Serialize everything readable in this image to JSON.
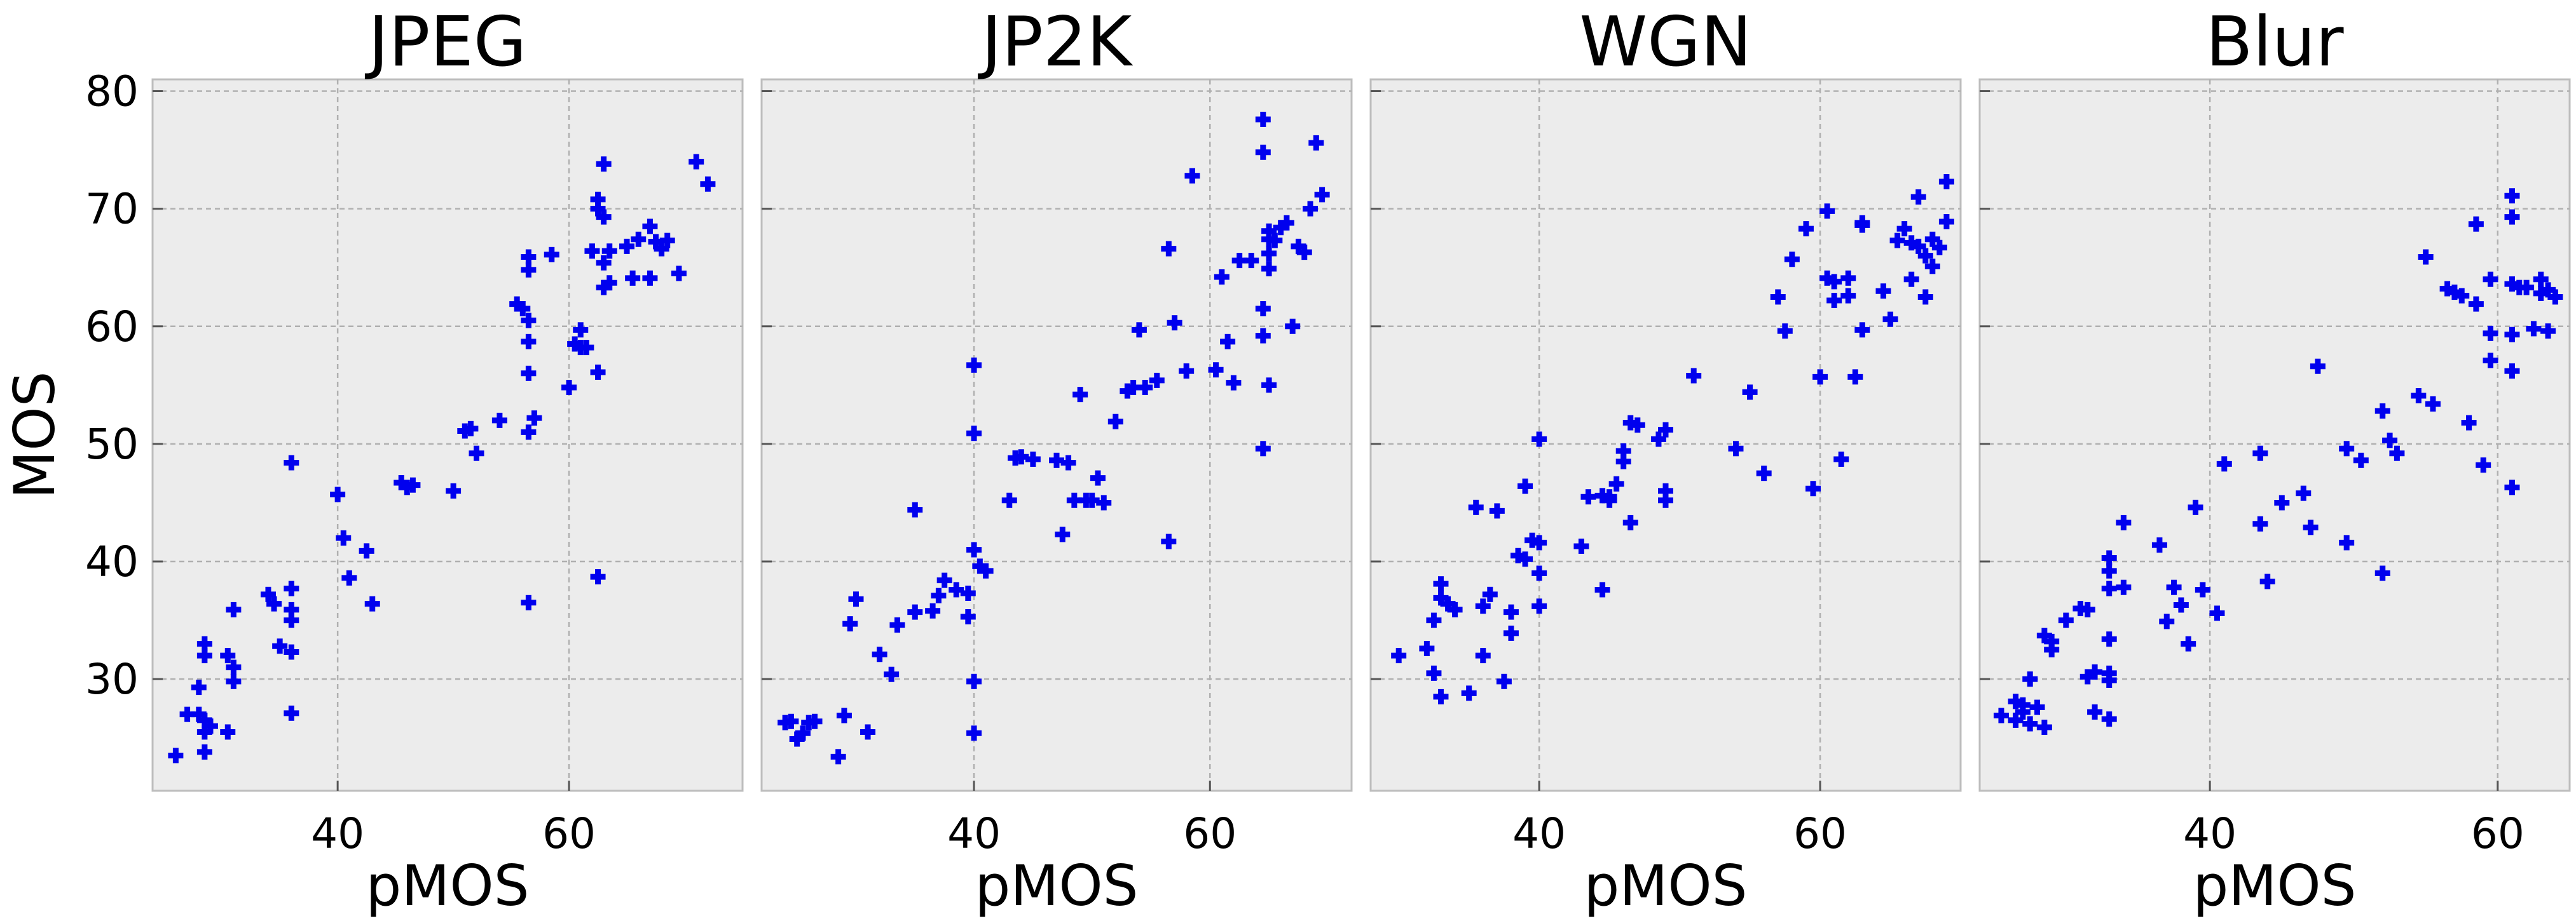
{
  "chart_data": [
    {
      "type": "scatter",
      "title": "JPEG",
      "xlabel": "pMOS",
      "ylabel": "MOS",
      "xlim": [
        24,
        75
      ],
      "ylim": [
        20.5,
        81
      ],
      "xticks": [
        40,
        60
      ],
      "yticks": [
        30,
        40,
        50,
        60,
        70,
        80
      ],
      "grid": true,
      "marker": "plus",
      "color": "#0000ee",
      "points": [
        [
          26,
          23.5
        ],
        [
          27,
          27
        ],
        [
          28,
          29.3
        ],
        [
          28,
          27
        ],
        [
          28.5,
          26.5
        ],
        [
          28.5,
          25.5
        ],
        [
          28.5,
          23.8
        ],
        [
          28.5,
          32
        ],
        [
          28.5,
          33
        ],
        [
          29,
          26
        ],
        [
          30.5,
          32
        ],
        [
          30.5,
          25.5
        ],
        [
          31,
          29.8
        ],
        [
          31,
          35.9
        ],
        [
          31,
          31
        ],
        [
          34,
          37.2
        ],
        [
          34.5,
          36.4
        ],
        [
          35,
          32.8
        ],
        [
          36,
          48.4
        ],
        [
          36,
          37.7
        ],
        [
          36,
          35.9
        ],
        [
          36,
          35
        ],
        [
          36,
          32.3
        ],
        [
          36,
          27.1
        ],
        [
          40,
          45.7
        ],
        [
          40.5,
          42
        ],
        [
          41,
          38.6
        ],
        [
          42.5,
          40.9
        ],
        [
          43,
          36.4
        ],
        [
          45.5,
          46.7
        ],
        [
          46,
          46.3
        ],
        [
          46.5,
          46.5
        ],
        [
          50,
          46
        ],
        [
          51,
          51.1
        ],
        [
          51.5,
          51.3
        ],
        [
          52,
          49.2
        ],
        [
          54,
          52
        ],
        [
          55.5,
          61.9
        ],
        [
          56,
          61.5
        ],
        [
          56.5,
          65.9
        ],
        [
          56.5,
          64.8
        ],
        [
          56.5,
          60.5
        ],
        [
          56.5,
          58.7
        ],
        [
          56.5,
          56
        ],
        [
          56.5,
          51
        ],
        [
          56.5,
          36.5
        ],
        [
          57,
          52.2
        ],
        [
          58.5,
          66.1
        ],
        [
          60,
          54.8
        ],
        [
          60.5,
          58.5
        ],
        [
          61,
          59.7
        ],
        [
          61,
          58.2
        ],
        [
          61.5,
          58.2
        ],
        [
          62,
          66.4
        ],
        [
          62.5,
          70.8
        ],
        [
          62.5,
          70
        ],
        [
          62.5,
          56.1
        ],
        [
          62.5,
          38.7
        ],
        [
          63,
          73.8
        ],
        [
          63,
          69.3
        ],
        [
          63,
          65.4
        ],
        [
          63,
          63.3
        ],
        [
          63.5,
          66.4
        ],
        [
          63.5,
          63.7
        ],
        [
          65,
          66.8
        ],
        [
          65.5,
          64.1
        ],
        [
          66,
          67.4
        ],
        [
          67,
          68.5
        ],
        [
          67,
          64.1
        ],
        [
          67.5,
          67.2
        ],
        [
          68,
          66.6
        ],
        [
          68.5,
          67.3
        ],
        [
          69.5,
          64.5
        ],
        [
          71,
          74
        ],
        [
          72,
          72.1
        ]
      ]
    },
    {
      "type": "scatter",
      "title": "JP2K",
      "xlabel": "pMOS",
      "xlim": [
        22,
        72
      ],
      "ylim": [
        20.5,
        81
      ],
      "xticks": [
        40,
        60
      ],
      "yticks": [
        30,
        40,
        50,
        60,
        70,
        80
      ],
      "grid": true,
      "marker": "plus",
      "color": "#0000ee",
      "points": [
        [
          24,
          26.3
        ],
        [
          24.5,
          26.4
        ],
        [
          25,
          24.9
        ],
        [
          25.5,
          25.4
        ],
        [
          26,
          26.3
        ],
        [
          26.5,
          26.4
        ],
        [
          28.5,
          23.4
        ],
        [
          29,
          26.9
        ],
        [
          29.5,
          34.7
        ],
        [
          30,
          36.8
        ],
        [
          31,
          25.5
        ],
        [
          32,
          32.1
        ],
        [
          33,
          30.4
        ],
        [
          33.5,
          34.6
        ],
        [
          35,
          35.7
        ],
        [
          35,
          44.4
        ],
        [
          36.5,
          35.8
        ],
        [
          37,
          37.1
        ],
        [
          37.5,
          38.4
        ],
        [
          38.5,
          37.6
        ],
        [
          39.5,
          35.3
        ],
        [
          39.5,
          37.3
        ],
        [
          40,
          56.7
        ],
        [
          40,
          50.9
        ],
        [
          40,
          41
        ],
        [
          40,
          29.8
        ],
        [
          40,
          25.4
        ],
        [
          40.5,
          39.6
        ],
        [
          41,
          39.2
        ],
        [
          43,
          45.2
        ],
        [
          43.5,
          48.8
        ],
        [
          44,
          48.9
        ],
        [
          45,
          48.7
        ],
        [
          47,
          48.6
        ],
        [
          47.5,
          42.3
        ],
        [
          48,
          48.4
        ],
        [
          48.5,
          45.2
        ],
        [
          49,
          54.2
        ],
        [
          49.5,
          45.2
        ],
        [
          50,
          45.2
        ],
        [
          50.5,
          47.1
        ],
        [
          51,
          45
        ],
        [
          52,
          51.9
        ],
        [
          53,
          54.5
        ],
        [
          53.5,
          54.8
        ],
        [
          54,
          59.7
        ],
        [
          54.5,
          54.8
        ],
        [
          55.5,
          55.4
        ],
        [
          56.5,
          66.6
        ],
        [
          56.5,
          41.7
        ],
        [
          57,
          60.3
        ],
        [
          58,
          56.2
        ],
        [
          58.5,
          72.8
        ],
        [
          60.5,
          56.3
        ],
        [
          61,
          64.2
        ],
        [
          61.5,
          58.7
        ],
        [
          62,
          55.2
        ],
        [
          62.5,
          65.6
        ],
        [
          63.5,
          65.6
        ],
        [
          64.5,
          77.6
        ],
        [
          64.5,
          74.8
        ],
        [
          64.5,
          61.5
        ],
        [
          64.5,
          59.2
        ],
        [
          64.5,
          49.6
        ],
        [
          65,
          68.1
        ],
        [
          65,
          67.4
        ],
        [
          65,
          66.2
        ],
        [
          65,
          64.9
        ],
        [
          65,
          55
        ],
        [
          65.5,
          67.3
        ],
        [
          66,
          68.4
        ],
        [
          66.5,
          68.8
        ],
        [
          67,
          60
        ],
        [
          67.5,
          66.8
        ],
        [
          68,
          66.3
        ],
        [
          68.5,
          70
        ],
        [
          69,
          75.6
        ],
        [
          69.5,
          71.2
        ]
      ]
    },
    {
      "type": "scatter",
      "title": "WGN",
      "xlabel": "pMOS",
      "xlim": [
        28,
        70
      ],
      "ylim": [
        20.5,
        81
      ],
      "xticks": [
        40,
        60
      ],
      "yticks": [
        30,
        40,
        50,
        60,
        70,
        80
      ],
      "grid": true,
      "marker": "plus",
      "color": "#0000ee",
      "points": [
        [
          30,
          32
        ],
        [
          32,
          32.6
        ],
        [
          32.5,
          30.5
        ],
        [
          32.5,
          35
        ],
        [
          33,
          36.9
        ],
        [
          33,
          38.1
        ],
        [
          33,
          28.5
        ],
        [
          33.5,
          36.4
        ],
        [
          34,
          35.9
        ],
        [
          35,
          28.8
        ],
        [
          35.5,
          44.6
        ],
        [
          36,
          36.2
        ],
        [
          36,
          32
        ],
        [
          36.5,
          37.2
        ],
        [
          37,
          44.3
        ],
        [
          37.5,
          29.8
        ],
        [
          38,
          33.9
        ],
        [
          38,
          35.7
        ],
        [
          38.5,
          40.5
        ],
        [
          39,
          40.2
        ],
        [
          39,
          46.4
        ],
        [
          39.5,
          41.8
        ],
        [
          40,
          39
        ],
        [
          40,
          36.2
        ],
        [
          40,
          41.6
        ],
        [
          40,
          50.4
        ],
        [
          43,
          41.3
        ],
        [
          43.5,
          45.5
        ],
        [
          44.5,
          45.6
        ],
        [
          44.5,
          37.6
        ],
        [
          45,
          45.2
        ],
        [
          45,
          45.5
        ],
        [
          45.5,
          46.6
        ],
        [
          46,
          49.4
        ],
        [
          46,
          48.5
        ],
        [
          46.5,
          43.3
        ],
        [
          46.5,
          51.8
        ],
        [
          47,
          51.6
        ],
        [
          48.5,
          50.4
        ],
        [
          49,
          46
        ],
        [
          49,
          51.2
        ],
        [
          49,
          45.2
        ],
        [
          51,
          55.8
        ],
        [
          54,
          49.6
        ],
        [
          55,
          54.4
        ],
        [
          56,
          47.5
        ],
        [
          57,
          62.5
        ],
        [
          57.5,
          59.6
        ],
        [
          58,
          65.7
        ],
        [
          59,
          68.3
        ],
        [
          59.5,
          46.2
        ],
        [
          60,
          55.7
        ],
        [
          60.5,
          69.8
        ],
        [
          60.5,
          64.1
        ],
        [
          61,
          62.2
        ],
        [
          61,
          63.8
        ],
        [
          61.5,
          48.7
        ],
        [
          62,
          62.6
        ],
        [
          62,
          64.1
        ],
        [
          62.5,
          55.7
        ],
        [
          63,
          68.6
        ],
        [
          63,
          68.8
        ],
        [
          63,
          59.7
        ],
        [
          64.5,
          63
        ],
        [
          65,
          60.6
        ],
        [
          65.5,
          67.3
        ],
        [
          66,
          68.3
        ],
        [
          66.5,
          64
        ],
        [
          66.5,
          67.1
        ],
        [
          67,
          71
        ],
        [
          67,
          66.8
        ],
        [
          67.5,
          62.5
        ],
        [
          67.5,
          66
        ],
        [
          68,
          65.1
        ],
        [
          68,
          67.4
        ],
        [
          68.5,
          66.7
        ],
        [
          69,
          72.3
        ],
        [
          69,
          68.9
        ]
      ]
    },
    {
      "type": "scatter",
      "title": "Blur",
      "xlabel": "pMOS",
      "xlim": [
        24,
        65
      ],
      "ylim": [
        20.5,
        81
      ],
      "xticks": [
        40,
        60
      ],
      "yticks": [
        30,
        40,
        50,
        60,
        70,
        80
      ],
      "grid": true,
      "marker": "plus",
      "color": "#0000ee",
      "points": [
        [
          25.5,
          26.9
        ],
        [
          26.5,
          28.1
        ],
        [
          26.5,
          26.5
        ],
        [
          27,
          27.8
        ],
        [
          27,
          27.2
        ],
        [
          27.5,
          30
        ],
        [
          27.5,
          26.2
        ],
        [
          28,
          27.6
        ],
        [
          28.5,
          25.9
        ],
        [
          28.5,
          33.7
        ],
        [
          29,
          32.5
        ],
        [
          29,
          33.2
        ],
        [
          30,
          35
        ],
        [
          31,
          36
        ],
        [
          31.5,
          30.2
        ],
        [
          31.5,
          35.9
        ],
        [
          32,
          30.6
        ],
        [
          32,
          27.2
        ],
        [
          33,
          30.5
        ],
        [
          33,
          26.6
        ],
        [
          33,
          29.9
        ],
        [
          33,
          33.4
        ],
        [
          33,
          37.7
        ],
        [
          33,
          40.3
        ],
        [
          33,
          39.2
        ],
        [
          34,
          37.8
        ],
        [
          34,
          43.3
        ],
        [
          36.5,
          41.4
        ],
        [
          37,
          34.9
        ],
        [
          37.5,
          37.8
        ],
        [
          38,
          36.3
        ],
        [
          38.5,
          33
        ],
        [
          39,
          44.6
        ],
        [
          39.5,
          37.6
        ],
        [
          40.5,
          35.6
        ],
        [
          41,
          48.3
        ],
        [
          43.5,
          43.2
        ],
        [
          43.5,
          49.2
        ],
        [
          44,
          38.3
        ],
        [
          45,
          45
        ],
        [
          46.5,
          45.8
        ],
        [
          47,
          42.9
        ],
        [
          47.5,
          56.6
        ],
        [
          49.5,
          41.6
        ],
        [
          49.5,
          49.6
        ],
        [
          50.5,
          48.6
        ],
        [
          52,
          52.8
        ],
        [
          52,
          39
        ],
        [
          52.5,
          50.3
        ],
        [
          53,
          49.2
        ],
        [
          54.5,
          54.1
        ],
        [
          55,
          65.9
        ],
        [
          55.5,
          53.4
        ],
        [
          56.5,
          63.2
        ],
        [
          57,
          62.9
        ],
        [
          57.5,
          62.6
        ],
        [
          58,
          51.8
        ],
        [
          58.5,
          68.7
        ],
        [
          58.5,
          61.9
        ],
        [
          59,
          48.2
        ],
        [
          59.5,
          64
        ],
        [
          59.5,
          59.4
        ],
        [
          59.5,
          57.1
        ],
        [
          61,
          71.1
        ],
        [
          61,
          69.3
        ],
        [
          61,
          63.6
        ],
        [
          61,
          59.3
        ],
        [
          61,
          56.2
        ],
        [
          61,
          46.3
        ],
        [
          61.5,
          63.3
        ],
        [
          62,
          63.3
        ],
        [
          62.5,
          59.8
        ],
        [
          63,
          62.8
        ],
        [
          63,
          64
        ],
        [
          63.5,
          59.6
        ],
        [
          63.5,
          63.1
        ],
        [
          64,
          62.5
        ]
      ]
    }
  ]
}
